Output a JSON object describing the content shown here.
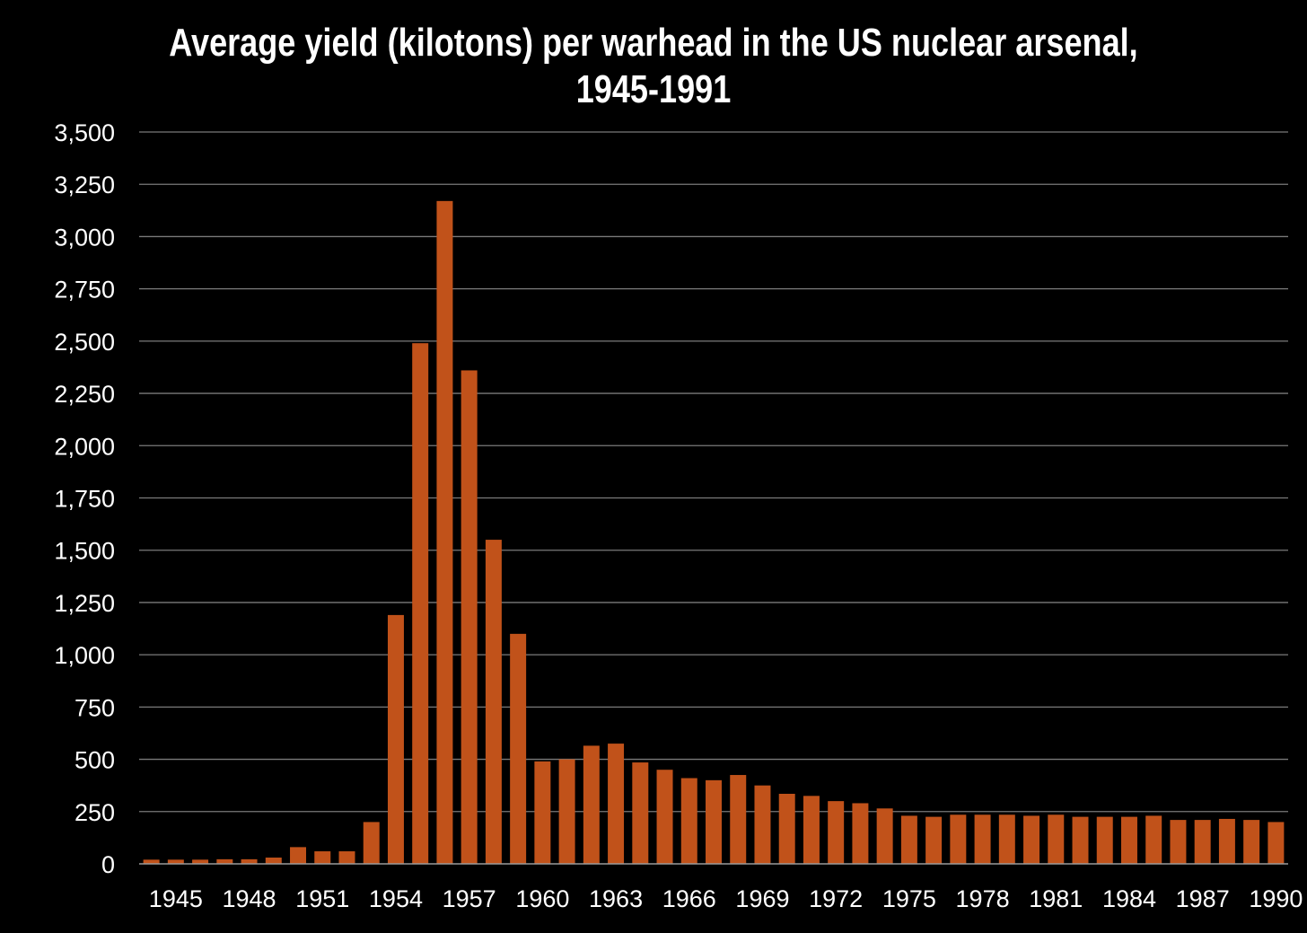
{
  "chart_data": {
    "type": "bar",
    "title": "Average yield (kilotons) per warhead in the US nuclear arsenal, 1945-1991",
    "title_lines": [
      "Average yield (kilotons) per warhead in the US nuclear arsenal,",
      "1945-1991"
    ],
    "xlabel": "",
    "ylabel": "",
    "ylim": [
      0,
      3500
    ],
    "yticks": [
      "0",
      "250",
      "500",
      "750",
      "1,000",
      "1,250",
      "1,500",
      "1,750",
      "2,000",
      "2,250",
      "2,500",
      "2,750",
      "3,000",
      "3,250",
      "3,500"
    ],
    "xtick_labels": [
      "1945",
      "1948",
      "1951",
      "1954",
      "1957",
      "1960",
      "1963",
      "1966",
      "1969",
      "1972",
      "1975",
      "1978",
      "1981",
      "1984",
      "1987",
      "1990"
    ],
    "categories": [
      "1945",
      "1946",
      "1947",
      "1948",
      "1949",
      "1950",
      "1951",
      "1952",
      "1953",
      "1954",
      "1955",
      "1956",
      "1957",
      "1958",
      "1959",
      "1960",
      "1961",
      "1962",
      "1963",
      "1964",
      "1965",
      "1966",
      "1967",
      "1968",
      "1969",
      "1970",
      "1971",
      "1972",
      "1973",
      "1974",
      "1975",
      "1976",
      "1977",
      "1978",
      "1979",
      "1980",
      "1981",
      "1982",
      "1983",
      "1984",
      "1985",
      "1986",
      "1987",
      "1988",
      "1989",
      "1990",
      "1991"
    ],
    "values": [
      20,
      20,
      20,
      22,
      22,
      30,
      80,
      60,
      60,
      200,
      1190,
      2490,
      3170,
      2360,
      1550,
      1100,
      490,
      500,
      565,
      575,
      485,
      450,
      410,
      400,
      425,
      375,
      335,
      325,
      300,
      290,
      265,
      230,
      225,
      235,
      235,
      235,
      230,
      235,
      225,
      225,
      225,
      230,
      210,
      210,
      215,
      210,
      200
    ],
    "bar_color": "#c1521a",
    "background_color": "#000000",
    "grid": true,
    "legend": "none"
  }
}
